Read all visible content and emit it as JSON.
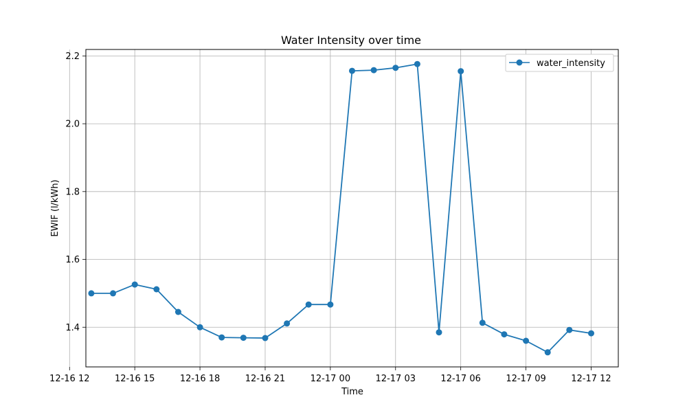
{
  "chart_data": {
    "type": "line",
    "title": "Water Intensity over time",
    "xlabel": "Time",
    "ylabel": "EWIF (l/kWh)",
    "x": [
      "12-16 13:00",
      "12-16 14:00",
      "12-16 15:00",
      "12-16 16:00",
      "12-16 17:00",
      "12-16 18:00",
      "12-16 19:00",
      "12-16 20:00",
      "12-16 21:00",
      "12-16 22:00",
      "12-16 23:00",
      "12-17 00:00",
      "12-17 01:00",
      "12-17 02:00",
      "12-17 03:00",
      "12-17 04:00",
      "12-17 05:00",
      "12-17 06:00",
      "12-17 07:00",
      "12-17 08:00",
      "12-17 09:00",
      "12-17 10:00",
      "12-17 11:00",
      "12-17 12:00"
    ],
    "series": [
      {
        "name": "water_intensity",
        "color": "#1f77b4",
        "values": [
          1.5,
          1.5,
          1.526,
          1.512,
          1.445,
          1.4,
          1.37,
          1.369,
          1.368,
          1.411,
          1.467,
          1.467,
          2.156,
          2.158,
          2.165,
          2.176,
          1.385,
          2.155,
          1.413,
          1.379,
          1.36,
          1.326,
          1.392,
          1.382
        ]
      }
    ],
    "x_ticks": [
      "12-16 12",
      "12-16 15",
      "12-16 18",
      "12-16 21",
      "12-17 00",
      "12-17 03",
      "12-17 06",
      "12-17 09",
      "12-17 12"
    ],
    "y_ticks": [
      "1.4",
      "1.6",
      "1.8",
      "2.0",
      "2.2"
    ],
    "xlim_hours": [
      -0.25,
      24.25
    ],
    "ylim": [
      1.283,
      2.219
    ],
    "grid": true,
    "legend": "top-right"
  }
}
